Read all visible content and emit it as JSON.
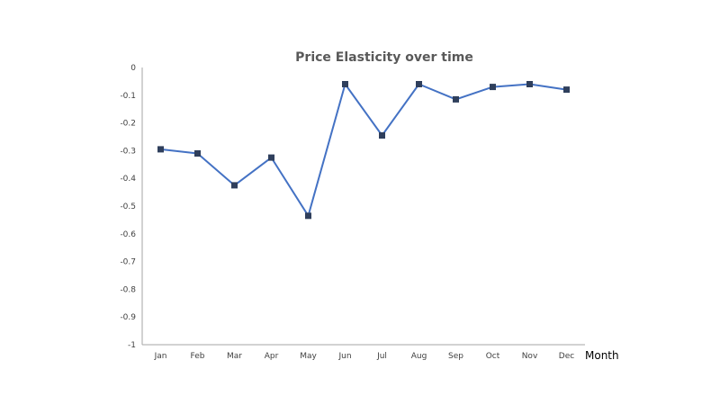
{
  "chart_data": {
    "type": "line",
    "title": "Price Elasticity over time",
    "xlabel": "Month",
    "ylabel": "",
    "categories": [
      "Jan",
      "Feb",
      "Mar",
      "Apr",
      "May",
      "Jun",
      "Jul",
      "Aug",
      "Sep",
      "Oct",
      "Nov",
      "Dec"
    ],
    "series": [
      {
        "values": [
          -0.295,
          -0.31,
          -0.425,
          -0.325,
          -0.535,
          -0.06,
          -0.245,
          -0.06,
          -0.115,
          -0.07,
          -0.06,
          -0.08
        ]
      }
    ],
    "ylim": [
      -1,
      0
    ],
    "yticks": [
      0,
      -0.1,
      -0.2,
      -0.3,
      -0.4,
      -0.5,
      -0.6,
      -0.7,
      -0.8,
      -0.9,
      -1
    ],
    "ytick_labels": [
      "0",
      "-0.1",
      "-0.2",
      "-0.3",
      "-0.4",
      "-0.5",
      "-0.6",
      "-0.7",
      "-0.8",
      "-0.9",
      "-1"
    ],
    "grid": false,
    "legend": "none",
    "colors": {
      "line": "#4472c4",
      "marker": "#2f3f5c",
      "axis": "#a6a6a6",
      "title": "#595959"
    }
  }
}
